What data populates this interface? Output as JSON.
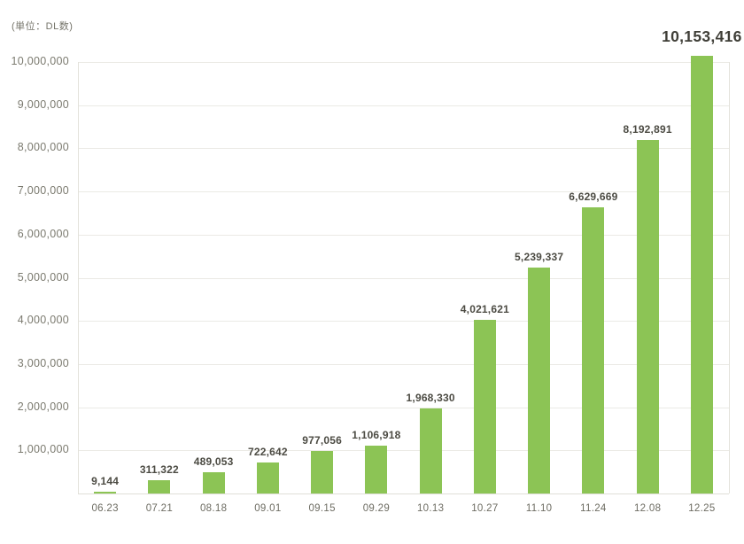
{
  "chart_data": {
    "type": "bar",
    "title": "",
    "xlabel": "",
    "ylabel": "(単位：DL数)",
    "categories": [
      "06.23",
      "07.21",
      "08.18",
      "09.01",
      "09.15",
      "09.29",
      "10.13",
      "10.27",
      "11.10",
      "11.24",
      "12.08",
      "12.25"
    ],
    "values": [
      9144,
      311322,
      489053,
      722642,
      977056,
      1106918,
      1968330,
      4021621,
      5239337,
      6629669,
      8192891,
      10153416
    ],
    "value_labels": [
      "9,144",
      "311,322",
      "489,053",
      "722,642",
      "977,056",
      "1,106,918",
      "1,968,330",
      "4,021,621",
      "5,239,337",
      "6,629,669",
      "8,192,891",
      "10,153,416"
    ],
    "ylim": [
      0,
      10000000
    ],
    "y_ticks": [
      1000000,
      2000000,
      3000000,
      4000000,
      5000000,
      6000000,
      7000000,
      8000000,
      9000000,
      10000000
    ],
    "y_tick_labels": [
      "1,000,000",
      "2,000,000",
      "3,000,000",
      "4,000,000",
      "5,000,000",
      "6,000,000",
      "7,000,000",
      "8,000,000",
      "9,000,000",
      "10,000,000"
    ],
    "grid": true,
    "legend": "none",
    "bar_color": "#8cc455",
    "gridline_color": "#ebeae5",
    "highlight_last_label": true
  }
}
